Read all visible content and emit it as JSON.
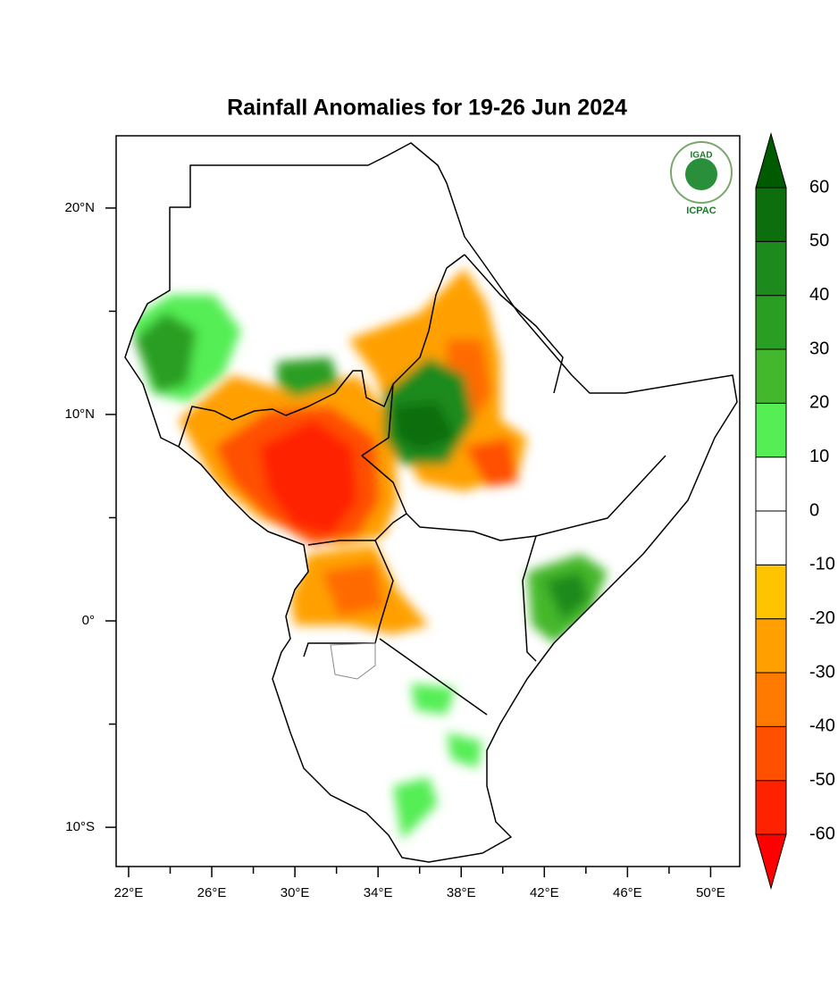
{
  "map": {
    "title": "Rainfall Anomalies for 19-26 Jun 2024",
    "logo": {
      "top": "IGAD",
      "bottom": "ICPAC"
    },
    "xlim": [
      21.4,
      51.4
    ],
    "ylim": [
      -11.9,
      23.5
    ],
    "xticks": [
      {
        "value": 22,
        "label": "22°E"
      },
      {
        "value": 26,
        "label": "26°E"
      },
      {
        "value": 30,
        "label": "30°E"
      },
      {
        "value": 34,
        "label": "34°E"
      },
      {
        "value": 38,
        "label": "38°E"
      },
      {
        "value": 42,
        "label": "42°E"
      },
      {
        "value": 46,
        "label": "46°E"
      },
      {
        "value": 50,
        "label": "50°E"
      }
    ],
    "xminor": [
      24,
      28,
      32,
      36,
      40,
      44,
      48
    ],
    "yticks": [
      {
        "value": 20,
        "label": "20°N"
      },
      {
        "value": 10,
        "label": "10°N"
      },
      {
        "value": 0,
        "label": "0°"
      },
      {
        "value": -10,
        "label": "10°S"
      }
    ],
    "yminor": [
      15,
      5,
      -5
    ],
    "colorbar": {
      "levels": [
        -60,
        -50,
        -40,
        -30,
        -20,
        -10,
        0,
        10,
        20,
        30,
        40,
        50,
        60
      ],
      "colors": [
        "#ff0000",
        "#ff2200",
        "#ff5000",
        "#ff7a00",
        "#ffa000",
        "#ffc400",
        "#ffffff",
        "#ffffff",
        "#55ee55",
        "#44b82c",
        "#2a9e22",
        "#1c8a1c",
        "#0d6e0d",
        "#005a00"
      ]
    }
  }
}
